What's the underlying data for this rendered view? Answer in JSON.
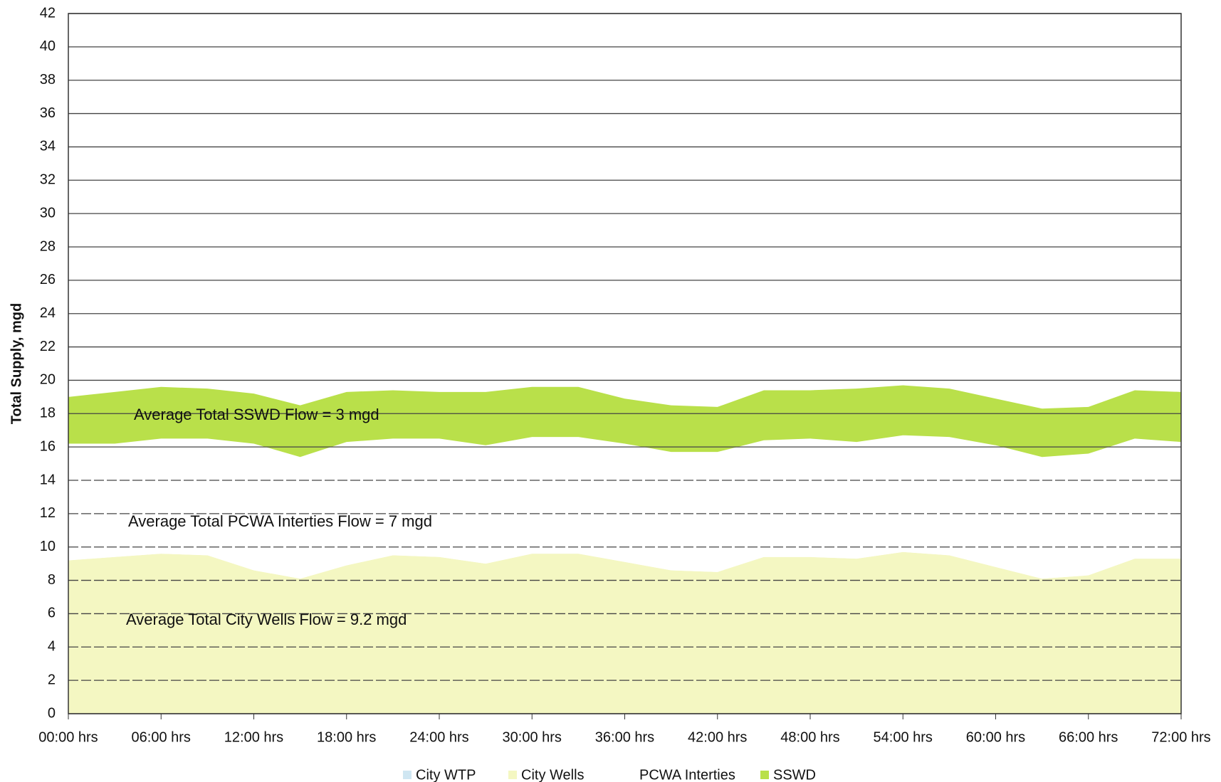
{
  "chart_data": {
    "type": "area",
    "stacked": true,
    "y_label": "Total Supply, mgd",
    "x": [
      0,
      3,
      6,
      9,
      12,
      15,
      18,
      21,
      24,
      27,
      30,
      33,
      36,
      39,
      42,
      45,
      48,
      51,
      54,
      57,
      60,
      63,
      66,
      69,
      72
    ],
    "series": [
      {
        "name": "City WTP",
        "color": "#cfe6f2",
        "values": [
          0,
          0,
          0,
          0,
          0,
          0,
          0,
          0,
          0,
          0,
          0,
          0,
          0,
          0,
          0,
          0,
          0,
          0,
          0,
          0,
          0,
          0,
          0,
          0,
          0
        ]
      },
      {
        "name": "City Wells",
        "color": "#f4f7c2",
        "values": [
          9.2,
          9.4,
          9.6,
          9.5,
          8.6,
          8.1,
          8.9,
          9.5,
          9.4,
          9.0,
          9.6,
          9.6,
          9.1,
          8.6,
          8.5,
          9.4,
          9.4,
          9.3,
          9.7,
          9.5,
          8.8,
          8.1,
          8.3,
          9.3,
          9.3
        ]
      },
      {
        "name": "PCWA Interties",
        "color": "#ffffff",
        "values": [
          7.0,
          6.8,
          6.9,
          7.0,
          7.6,
          7.3,
          7.4,
          7.0,
          7.1,
          7.1,
          7.0,
          7.0,
          7.1,
          7.1,
          7.2,
          7.0,
          7.1,
          7.0,
          7.0,
          7.1,
          7.3,
          7.3,
          7.3,
          7.2,
          7.0
        ]
      },
      {
        "name": "SSWD",
        "color": "#b9e04a",
        "values": [
          2.8,
          3.1,
          3.1,
          3.0,
          3.0,
          3.1,
          3.0,
          2.9,
          2.8,
          3.2,
          3.0,
          3.0,
          2.7,
          2.8,
          2.7,
          3.0,
          2.9,
          3.2,
          3.0,
          2.9,
          2.8,
          2.9,
          2.8,
          2.9,
          3.0
        ]
      }
    ],
    "annotations": [
      "Average  Total SSWD Flow = 3 mgd",
      "Average Total PCWA Interties Flow = 7 mgd",
      "Average Total City Wells Flow = 9.2 mgd"
    ],
    "xlim": [
      0,
      72
    ],
    "xticks": [
      {
        "value": 0,
        "label": "00:00 hrs"
      },
      {
        "value": 6,
        "label": "06:00 hrs"
      },
      {
        "value": 12,
        "label": "12:00 hrs"
      },
      {
        "value": 18,
        "label": "18:00 hrs"
      },
      {
        "value": 24,
        "label": "24:00 hrs"
      },
      {
        "value": 30,
        "label": "30:00 hrs"
      },
      {
        "value": 36,
        "label": "36:00 hrs"
      },
      {
        "value": 42,
        "label": "42:00 hrs"
      },
      {
        "value": 48,
        "label": "48:00 hrs"
      },
      {
        "value": 54,
        "label": "54:00 hrs"
      },
      {
        "value": 60,
        "label": "60:00 hrs"
      },
      {
        "value": 66,
        "label": "66:00 hrs"
      },
      {
        "value": 72,
        "label": "72:00 hrs"
      }
    ],
    "ylim": [
      0,
      42
    ],
    "yticks": [
      0,
      2,
      4,
      6,
      8,
      10,
      12,
      14,
      16,
      18,
      20,
      22,
      24,
      26,
      28,
      30,
      32,
      34,
      36,
      38,
      40,
      42
    ],
    "grid": true,
    "legend": "bottom"
  }
}
